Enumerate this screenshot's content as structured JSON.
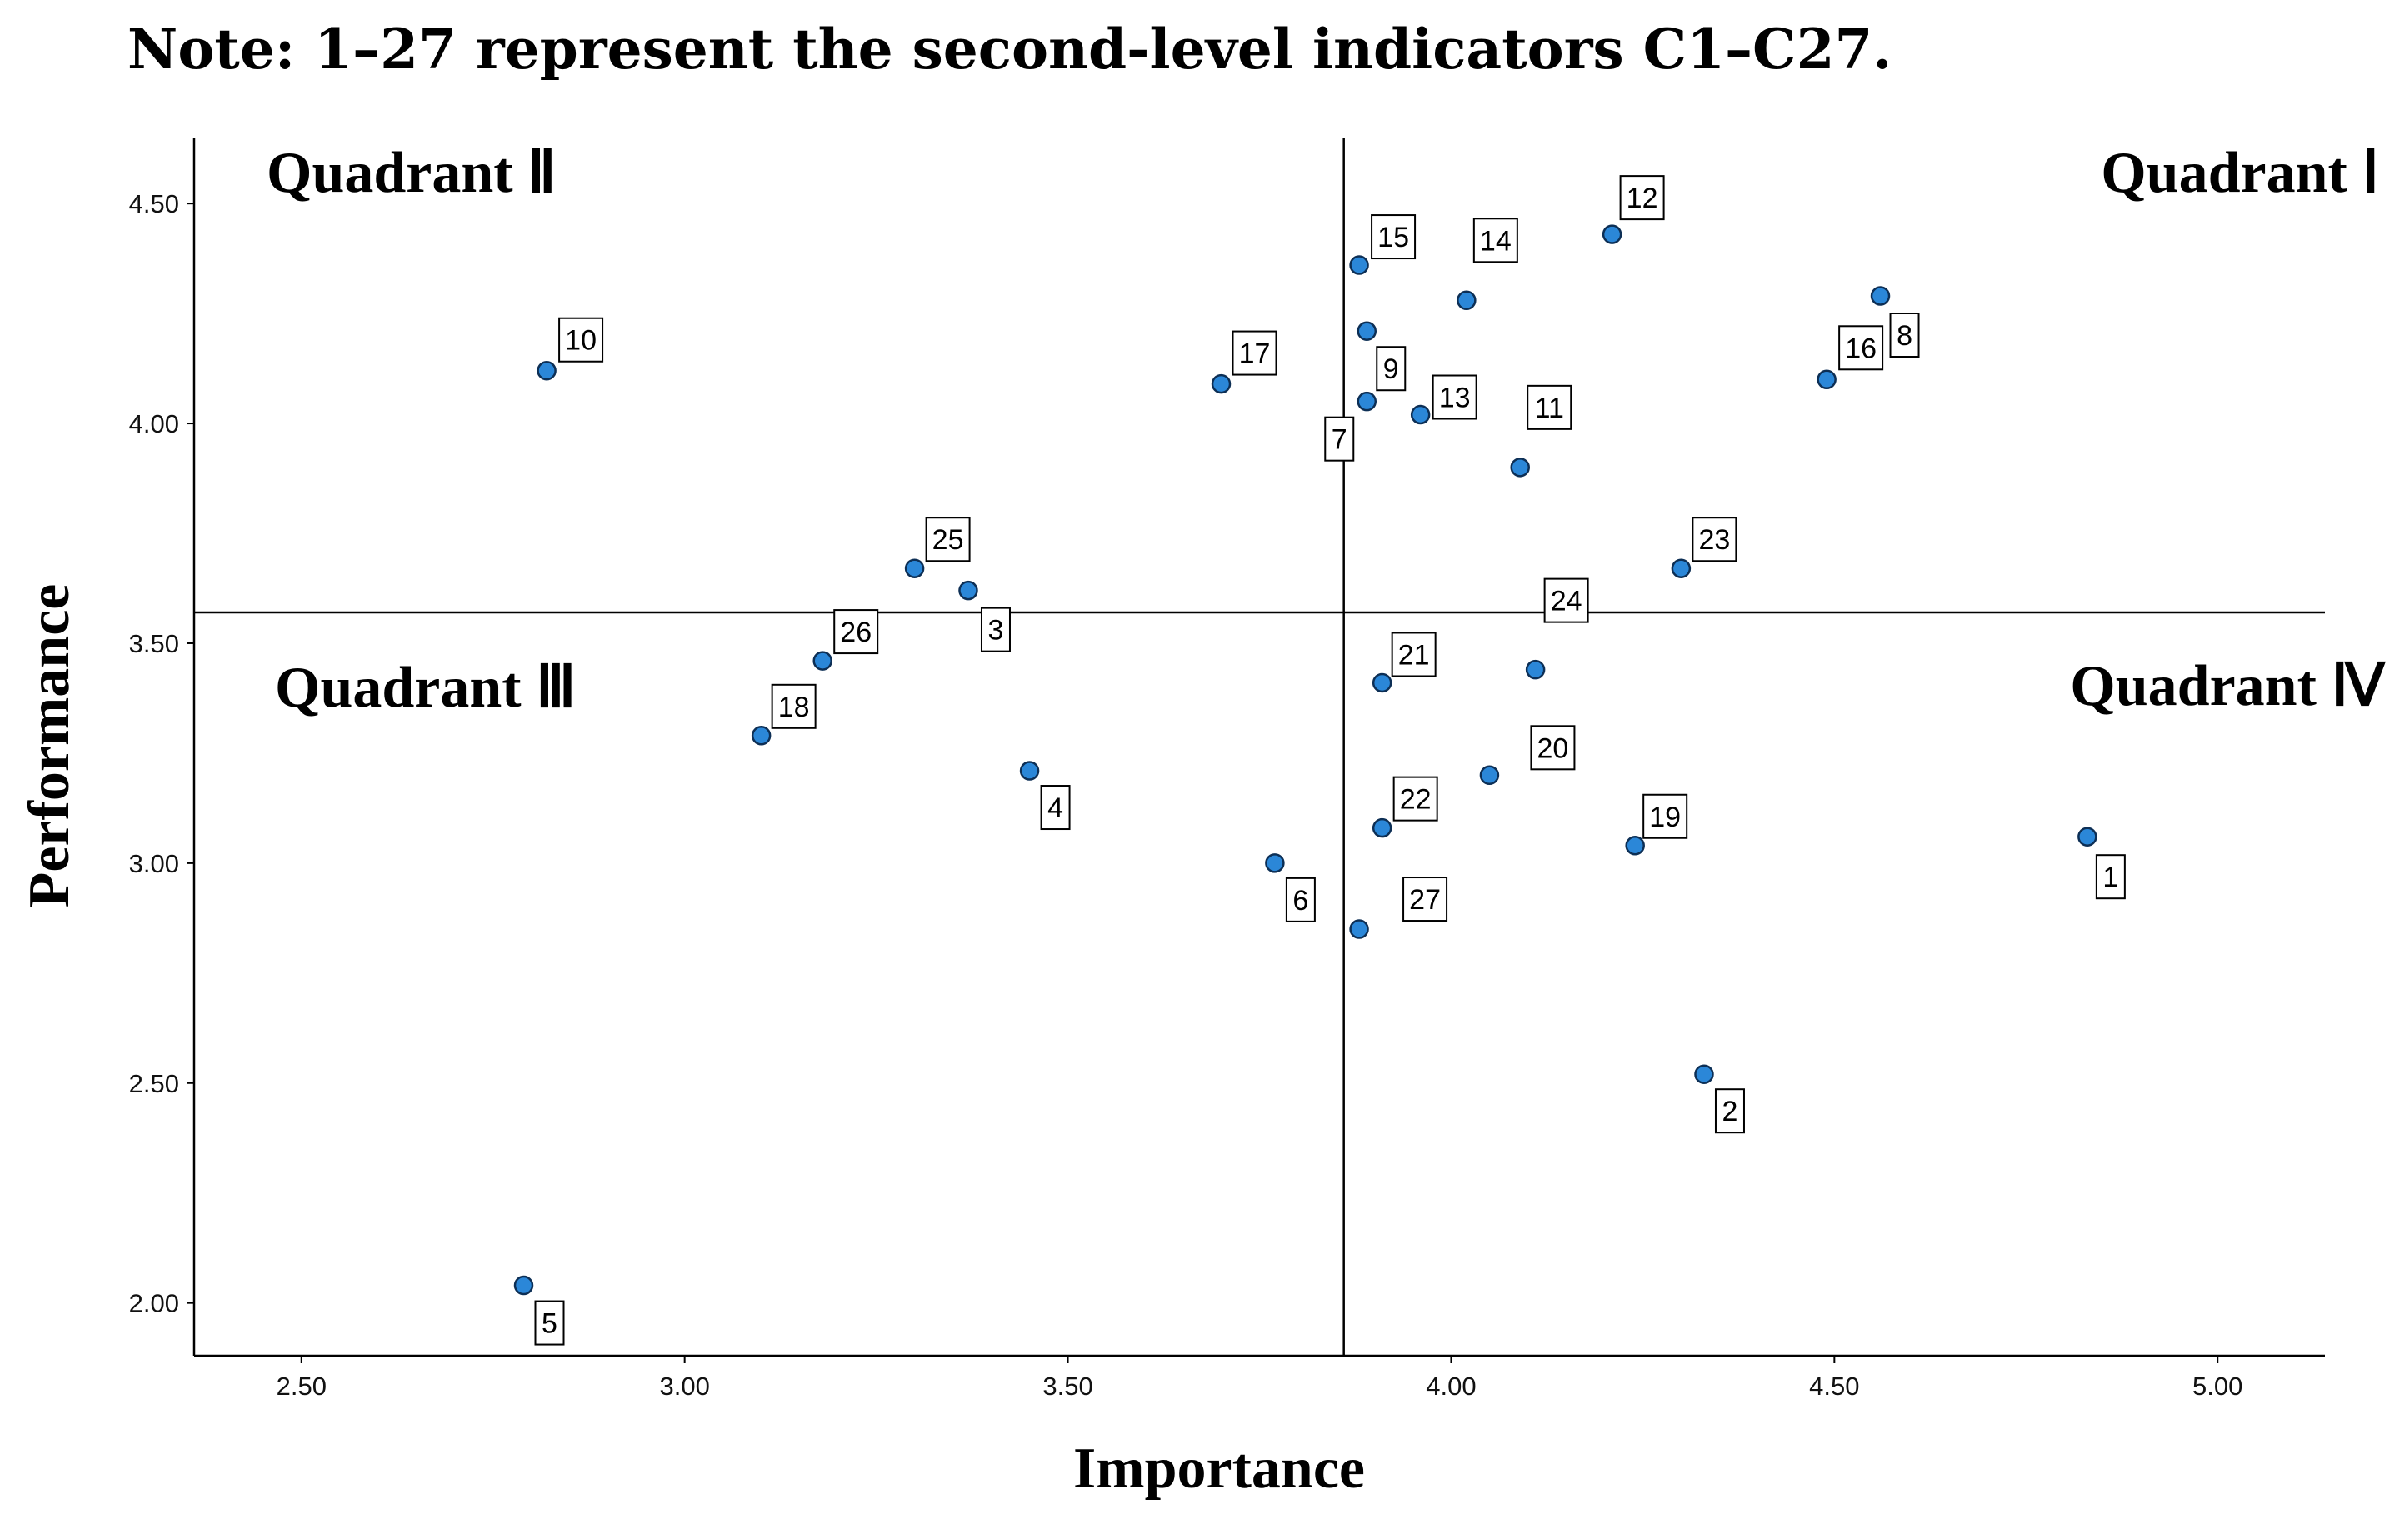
{
  "note": "Note: 1–27 represent the second-level indicators C1–C27.",
  "chart_data": {
    "type": "scatter",
    "xlabel": "Importance",
    "ylabel": "Performance",
    "xlim": [
      2.36,
      5.14
    ],
    "ylim": [
      1.88,
      4.65
    ],
    "xticks": [
      2.5,
      3.0,
      3.5,
      4.0,
      4.5,
      5.0
    ],
    "yticks": [
      2.0,
      2.5,
      3.0,
      3.5,
      4.0,
      4.5
    ],
    "xtick_labels": [
      "2.50",
      "3.00",
      "3.50",
      "4.00",
      "4.50",
      "5.00"
    ],
    "ytick_labels": [
      "2.00",
      "2.50",
      "3.00",
      "3.50",
      "4.00",
      "4.50"
    ],
    "reference_lines": {
      "x": 3.86,
      "y": 3.57
    },
    "quadrant_labels": [
      {
        "id": "q1",
        "text": "Quadrant Ⅰ"
      },
      {
        "id": "q2",
        "text": "Quadrant Ⅱ"
      },
      {
        "id": "q3",
        "text": "Quadrant Ⅲ"
      },
      {
        "id": "q4",
        "text": "Quadrant Ⅳ"
      }
    ],
    "point_color": "#2b87d8",
    "points": [
      {
        "label": "1",
        "x": 4.83,
        "y": 3.06
      },
      {
        "label": "2",
        "x": 4.33,
        "y": 2.52
      },
      {
        "label": "3",
        "x": 3.37,
        "y": 3.62
      },
      {
        "label": "4",
        "x": 3.45,
        "y": 3.21
      },
      {
        "label": "5",
        "x": 2.79,
        "y": 2.04
      },
      {
        "label": "6",
        "x": 3.77,
        "y": 3.0
      },
      {
        "label": "7",
        "x": 3.89,
        "y": 4.05
      },
      {
        "label": "8",
        "x": 4.56,
        "y": 4.29
      },
      {
        "label": "9",
        "x": 3.89,
        "y": 4.21
      },
      {
        "label": "10",
        "x": 2.82,
        "y": 4.12
      },
      {
        "label": "11",
        "x": 4.09,
        "y": 3.9
      },
      {
        "label": "12",
        "x": 4.21,
        "y": 4.43
      },
      {
        "label": "13",
        "x": 3.96,
        "y": 4.02
      },
      {
        "label": "14",
        "x": 4.02,
        "y": 4.28
      },
      {
        "label": "15",
        "x": 3.88,
        "y": 4.36
      },
      {
        "label": "16",
        "x": 4.49,
        "y": 4.1
      },
      {
        "label": "17",
        "x": 3.7,
        "y": 4.09
      },
      {
        "label": "18",
        "x": 3.1,
        "y": 3.29
      },
      {
        "label": "19",
        "x": 4.24,
        "y": 3.04
      },
      {
        "label": "20",
        "x": 4.05,
        "y": 3.2
      },
      {
        "label": "21",
        "x": 3.91,
        "y": 3.41
      },
      {
        "label": "22",
        "x": 3.91,
        "y": 3.08
      },
      {
        "label": "23",
        "x": 4.3,
        "y": 3.67
      },
      {
        "label": "24",
        "x": 4.11,
        "y": 3.44
      },
      {
        "label": "25",
        "x": 3.3,
        "y": 3.67
      },
      {
        "label": "26",
        "x": 3.18,
        "y": 3.46
      },
      {
        "label": "27",
        "x": 3.88,
        "y": 2.85
      }
    ]
  }
}
